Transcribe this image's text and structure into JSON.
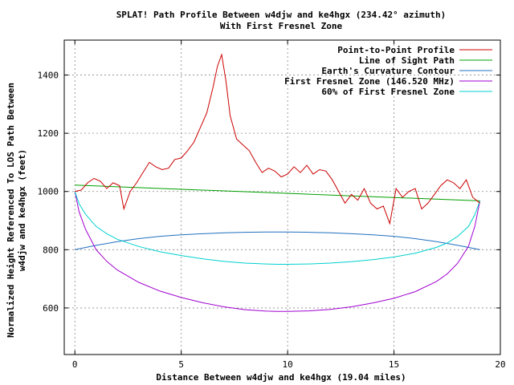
{
  "chart_data": {
    "type": "line",
    "title": "SPLAT! Path Profile Between w4djw and ke4hgx (234.42° azimuth)",
    "subtitle": "With First Fresnel Zone",
    "xlabel": "Distance Between w4djw and ke4hgx (19.04 miles)",
    "ylabel_line1": "Normalized Height Referenced To LOS Path Between",
    "ylabel_line2": "w4djw and ke4hgx (feet)",
    "xlim": [
      -0.5,
      20
    ],
    "ylim": [
      440,
      1520
    ],
    "x_ticks": [
      0,
      5,
      10,
      15,
      20
    ],
    "y_ticks": [
      600,
      800,
      1000,
      1200,
      1400
    ],
    "x_tick_labels": [
      "0",
      "5",
      "10",
      "15",
      "20"
    ],
    "y_tick_labels": [
      "600",
      "800",
      "1000",
      "1200",
      "1400"
    ],
    "grid": true,
    "legend_position": "top-right",
    "series": [
      {
        "name": "Point-to-Point Profile",
        "color": "#cc0000",
        "x": [
          0,
          0.3,
          0.6,
          0.9,
          1.2,
          1.5,
          1.8,
          2.1,
          2.3,
          2.6,
          2.9,
          3.2,
          3.5,
          3.8,
          4.1,
          4.4,
          4.7,
          5.0,
          5.3,
          5.6,
          5.9,
          6.2,
          6.5,
          6.7,
          6.9,
          7.1,
          7.3,
          7.6,
          7.9,
          8.2,
          8.5,
          8.8,
          9.1,
          9.4,
          9.7,
          10.0,
          10.3,
          10.6,
          10.9,
          11.2,
          11.5,
          11.8,
          12.1,
          12.4,
          12.7,
          13.0,
          13.3,
          13.6,
          13.9,
          14.2,
          14.5,
          14.8,
          15.1,
          15.4,
          15.7,
          16.0,
          16.3,
          16.6,
          16.9,
          17.2,
          17.5,
          17.8,
          18.1,
          18.4,
          18.7,
          19.04
        ],
        "values": [
          1000,
          1005,
          1030,
          1045,
          1035,
          1010,
          1030,
          1020,
          940,
          1000,
          1030,
          1065,
          1100,
          1085,
          1075,
          1080,
          1110,
          1115,
          1140,
          1170,
          1220,
          1270,
          1360,
          1430,
          1470,
          1380,
          1260,
          1180,
          1160,
          1140,
          1100,
          1065,
          1080,
          1070,
          1050,
          1060,
          1085,
          1065,
          1090,
          1060,
          1075,
          1070,
          1040,
          1000,
          960,
          990,
          970,
          1010,
          960,
          940,
          950,
          890,
          1010,
          980,
          1000,
          1010,
          940,
          960,
          990,
          1020,
          1040,
          1030,
          1010,
          1040,
          980,
          960
        ]
      },
      {
        "name": "Line of Sight Path",
        "color": "#00a000",
        "x": [
          0,
          19.04
        ],
        "values": [
          1022,
          968
        ]
      },
      {
        "name": "Earth's Curvature Contour",
        "color": "#1f6fbf",
        "x": [
          0,
          1,
          2,
          3,
          4,
          5,
          6,
          7,
          8,
          9,
          9.52,
          10,
          11,
          12,
          13,
          14,
          15,
          16,
          17,
          18,
          19.04
        ],
        "values": [
          800,
          815,
          828,
          838,
          846,
          851,
          855,
          858,
          860,
          861,
          861,
          861,
          860,
          858,
          855,
          851,
          846,
          838,
          828,
          815,
          800
        ]
      },
      {
        "name": "First Fresnel Zone (146.520 MHz)",
        "color": "#a000d0",
        "x": [
          0,
          0.2,
          0.5,
          1,
          1.5,
          2,
          3,
          4,
          5,
          6,
          7,
          8,
          9,
          9.52,
          10,
          11,
          12,
          13,
          14,
          15,
          16,
          17,
          17.5,
          18,
          18.5,
          18.8,
          19.04
        ],
        "values": [
          1000,
          930,
          870,
          800,
          760,
          730,
          688,
          658,
          636,
          618,
          604,
          594,
          589,
          588,
          588,
          590,
          595,
          604,
          617,
          633,
          656,
          691,
          717,
          754,
          812,
          880,
          968
        ]
      },
      {
        "name": "60% of First Fresnel Zone",
        "color": "#00d0d0",
        "x": [
          0,
          0.2,
          0.5,
          1,
          1.5,
          2,
          3,
          4,
          5,
          6,
          7,
          8,
          9,
          9.52,
          10,
          11,
          12,
          13,
          14,
          15,
          16,
          17,
          17.5,
          18,
          18.5,
          18.8,
          19.04
        ],
        "values": [
          1000,
          958,
          922,
          880,
          855,
          836,
          811,
          793,
          780,
          769,
          760,
          754,
          751,
          750,
          750,
          751,
          754,
          759,
          766,
          775,
          788,
          808,
          823,
          846,
          880,
          920,
          968
        ]
      }
    ]
  }
}
